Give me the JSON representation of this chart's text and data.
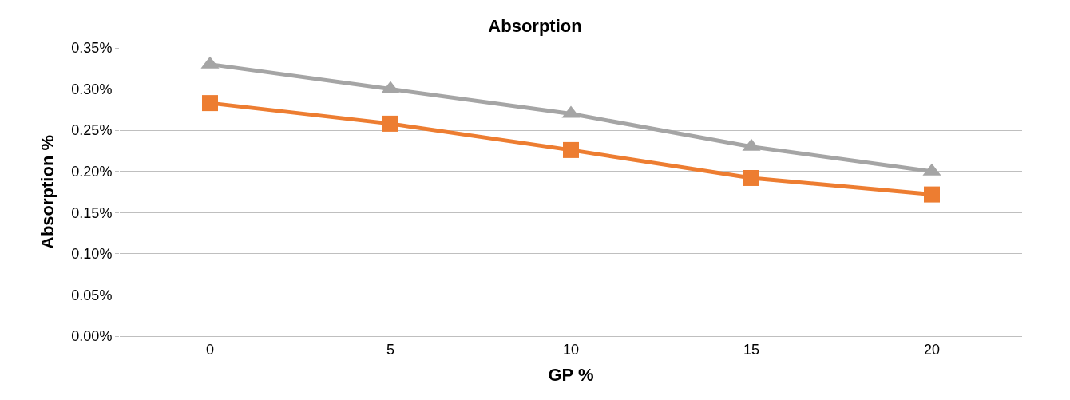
{
  "chart_data": {
    "type": "line",
    "title": "Absorption",
    "xlabel": "GP %",
    "ylabel": "Absorption %",
    "categories": [
      "0",
      "5",
      "10",
      "15",
      "20"
    ],
    "series": [
      {
        "color": "#ed7d31",
        "marker": "square",
        "values": [
          0.283,
          0.258,
          0.226,
          0.192,
          0.172
        ]
      },
      {
        "color": "#a5a5a5",
        "marker": "triangle",
        "values": [
          0.33,
          0.3,
          0.27,
          0.23,
          0.2
        ]
      }
    ],
    "ylim": [
      0,
      0.35
    ],
    "yticks": [
      {
        "value": 0,
        "label": "0.00%"
      },
      {
        "value": 0.05,
        "label": "0.05%"
      },
      {
        "value": 0.1,
        "label": "0.10%"
      },
      {
        "value": 0.15,
        "label": "0.15%"
      },
      {
        "value": 0.2,
        "label": "0.20%"
      },
      {
        "value": 0.25,
        "label": "0.25%"
      },
      {
        "value": 0.3,
        "label": "0.30%"
      },
      {
        "value": 0.35,
        "label": "0.35%"
      }
    ],
    "grid": "y",
    "line_style": "solid"
  }
}
